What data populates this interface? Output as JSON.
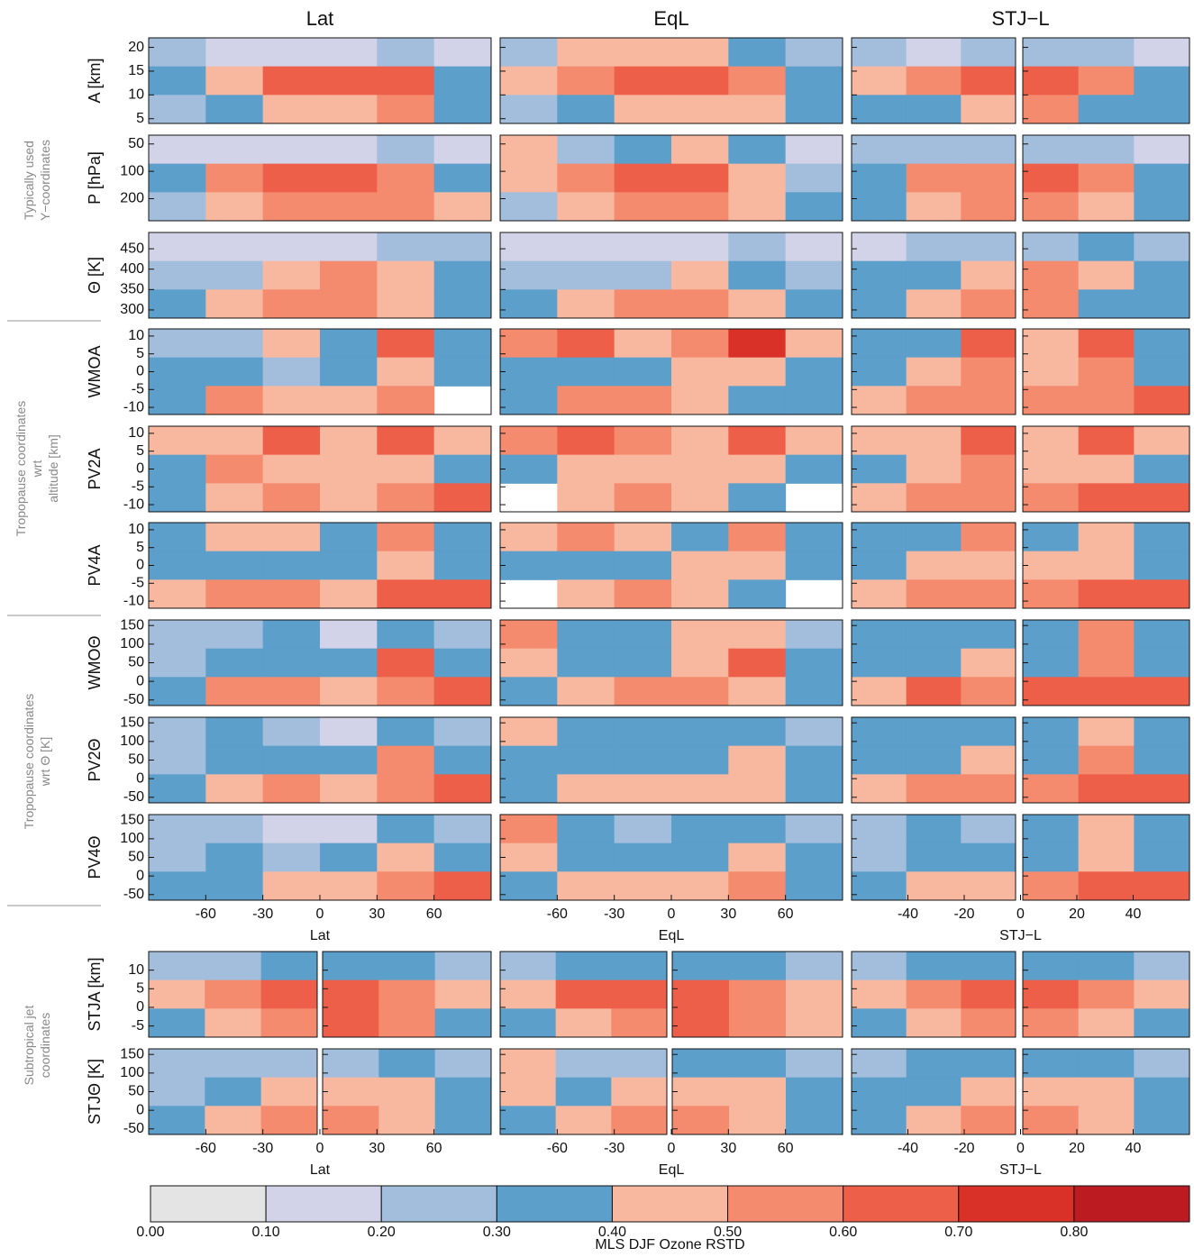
{
  "chart_data": {
    "type": "heatmap",
    "colorbar": {
      "title": "MLS DJF Ozone RSTD",
      "clim": [
        0,
        0.9
      ],
      "colors": [
        "#e4e4e4",
        "#d2d2e8",
        "#a3bedc",
        "#5c9fcb",
        "#f8b8a0",
        "#f48a6e",
        "#ee5f4a",
        "#d93128",
        "#bb1b21"
      ],
      "ticks": [
        {
          "value": 0,
          "label": "0.00"
        },
        {
          "value": 0.1,
          "label": "0.10"
        },
        {
          "value": 0.2,
          "label": "0.20"
        },
        {
          "value": 0.3,
          "label": "0.30"
        },
        {
          "value": 0.4,
          "label": "0.40"
        },
        {
          "value": 0.5,
          "label": "0.50"
        },
        {
          "value": 0.6,
          "label": "0.60"
        },
        {
          "value": 0.7,
          "label": "0.70"
        },
        {
          "value": 0.8,
          "label": "0.80"
        }
      ]
    },
    "groups": [
      "Typically used Y−coordinates",
      "Tropopause coordinates wrt  altitude [km]",
      "Tropopause coordinates wrt Θ [K]",
      "Subtropical jet coordinates"
    ],
    "columns": [
      {
        "title": "Lat",
        "xlabel": "Lat",
        "xlim": [
          -90,
          90
        ],
        "xticks": [
          -60,
          -30,
          0,
          30,
          60
        ]
      },
      {
        "title": "EqL",
        "xlabel": "EqL",
        "xlim": [
          -90,
          90
        ],
        "xticks": [
          -60,
          -30,
          0,
          30,
          60
        ]
      },
      {
        "title": "STJ−L",
        "xlabel": "STJ−L",
        "xlim": [
          -60,
          60
        ],
        "xticks": [
          -40,
          -20,
          0,
          20,
          40
        ]
      }
    ],
    "rows": [
      {
        "ylabel": "A [km]",
        "ylim": [
          4,
          22
        ],
        "yticks": [
          5,
          10,
          15,
          20
        ],
        "panels": [
          [
            [
              0.2,
              0.15,
              0.15,
              0.15,
              0.25,
              0.15
            ],
            [
              0.35,
              0.45,
              0.6,
              0.65,
              0.65,
              0.3
            ],
            [
              0.25,
              0.3,
              0.45,
              0.45,
              0.5,
              0.35
            ]
          ],
          [
            [
              0.25,
              0.45,
              0.45,
              0.45,
              0.3,
              0.2
            ],
            [
              0.45,
              0.55,
              0.65,
              0.65,
              0.55,
              0.3
            ],
            [
              0.25,
              0.35,
              0.45,
              0.45,
              0.45,
              0.35
            ]
          ],
          [
            [
              0.2,
              0.15,
              0.25,
              0.25,
              0.2,
              0.15
            ],
            [
              0.45,
              0.5,
              0.6,
              0.65,
              0.5,
              0.3
            ],
            [
              0.3,
              0.35,
              0.45,
              0.55,
              0.35,
              0.3
            ]
          ]
        ]
      },
      {
        "ylabel": "P [hPa]",
        "ylim": [
          350,
          40
        ],
        "log": true,
        "yticks": [
          50,
          100,
          200
        ],
        "panels": [
          [
            [
              0.15,
              0.15,
              0.15,
              0.15,
              0.2,
              0.15
            ],
            [
              0.35,
              0.55,
              0.6,
              0.6,
              0.55,
              0.3
            ],
            [
              0.25,
              0.45,
              0.5,
              0.5,
              0.5,
              0.4
            ]
          ],
          [
            [
              0.45,
              0.25,
              0.35,
              0.45,
              0.3,
              0.15
            ],
            [
              0.45,
              0.55,
              0.65,
              0.65,
              0.45,
              0.25
            ],
            [
              0.25,
              0.45,
              0.5,
              0.55,
              0.45,
              0.35
            ]
          ],
          [
            [
              0.2,
              0.25,
              0.25,
              0.25,
              0.2,
              0.15
            ],
            [
              0.35,
              0.5,
              0.55,
              0.65,
              0.5,
              0.3
            ],
            [
              0.3,
              0.45,
              0.55,
              0.55,
              0.45,
              0.3
            ]
          ]
        ]
      },
      {
        "ylabel": "Θ [K]",
        "ylim": [
          280,
          490
        ],
        "yticks": [
          300,
          350,
          400,
          450
        ],
        "panels": [
          [
            [
              0.15,
              0.15,
              0.15,
              0.15,
              0.25,
              0.2
            ],
            [
              0.25,
              0.25,
              0.45,
              0.5,
              0.45,
              0.3
            ],
            [
              0.35,
              0.45,
              0.55,
              0.55,
              0.45,
              0.3
            ]
          ],
          [
            [
              0.15,
              0.15,
              0.15,
              0.15,
              0.25,
              0.15
            ],
            [
              0.25,
              0.25,
              0.25,
              0.45,
              0.3,
              0.25
            ],
            [
              0.35,
              0.45,
              0.55,
              0.55,
              0.45,
              0.3
            ]
          ],
          [
            [
              0.15,
              0.2,
              0.25,
              0.25,
              0.3,
              0.2
            ],
            [
              0.3,
              0.35,
              0.45,
              0.55,
              0.45,
              0.3
            ],
            [
              0.3,
              0.45,
              0.55,
              0.55,
              0.35,
              0.3
            ]
          ]
        ]
      },
      {
        "ylabel": "WMOA",
        "ylim": [
          -12,
          12
        ],
        "yticks": [
          10,
          5,
          0,
          -5,
          -10
        ],
        "panels": [
          [
            [
              0.25,
              0.25,
              0.45,
              0.3,
              0.65,
              0.3
            ],
            [
              0.35,
              0.35,
              0.25,
              0.35,
              0.45,
              0.3
            ],
            [
              0.3,
              0.5,
              0.45,
              0.45,
              0.55,
              null
            ]
          ],
          [
            [
              0.55,
              0.65,
              0.45,
              0.55,
              0.75,
              0.45
            ],
            [
              0.3,
              0.35,
              0.35,
              0.45,
              0.45,
              0.35
            ],
            [
              0.3,
              0.5,
              0.55,
              0.45,
              0.35,
              0.3
            ]
          ],
          [
            [
              0.3,
              0.35,
              0.7,
              0.45,
              0.65,
              0.3
            ],
            [
              0.35,
              0.45,
              0.55,
              0.45,
              0.55,
              0.35
            ],
            [
              0.45,
              0.55,
              0.55,
              0.55,
              0.55,
              0.6
            ]
          ]
        ]
      },
      {
        "ylabel": "PV2A",
        "ylim": [
          -12,
          12
        ],
        "yticks": [
          10,
          5,
          0,
          -5,
          -10
        ],
        "panels": [
          [
            [
              0.45,
              0.45,
              0.65,
              0.45,
              0.7,
              0.45
            ],
            [
              0.35,
              0.5,
              0.45,
              0.45,
              0.45,
              0.35
            ],
            [
              0.35,
              0.45,
              0.5,
              0.45,
              0.55,
              0.65
            ]
          ],
          [
            [
              0.5,
              0.7,
              0.55,
              0.45,
              0.7,
              0.45
            ],
            [
              0.35,
              0.45,
              0.45,
              0.45,
              0.45,
              0.35
            ],
            [
              null,
              0.45,
              0.55,
              0.45,
              0.35,
              null
            ]
          ],
          [
            [
              0.4,
              0.45,
              0.7,
              0.45,
              0.65,
              0.45
            ],
            [
              0.35,
              0.45,
              0.55,
              0.45,
              0.45,
              0.35
            ],
            [
              0.45,
              0.55,
              0.55,
              0.55,
              0.65,
              0.65
            ]
          ]
        ]
      },
      {
        "ylabel": "PV4A",
        "ylim": [
          -12,
          12
        ],
        "yticks": [
          10,
          5,
          0,
          -5,
          -10
        ],
        "panels": [
          [
            [
              0.3,
              0.45,
              0.45,
              0.35,
              0.55,
              0.35
            ],
            [
              0.3,
              0.35,
              0.3,
              0.35,
              0.45,
              0.35
            ],
            [
              0.45,
              0.55,
              0.5,
              0.45,
              0.6,
              0.65
            ]
          ],
          [
            [
              0.45,
              0.55,
              0.45,
              0.35,
              0.55,
              0.3
            ],
            [
              0.3,
              0.35,
              0.35,
              0.45,
              0.45,
              0.35
            ],
            [
              null,
              0.45,
              0.5,
              0.45,
              0.35,
              null
            ]
          ],
          [
            [
              0.3,
              0.35,
              0.55,
              0.35,
              0.45,
              0.35
            ],
            [
              0.35,
              0.45,
              0.45,
              0.45,
              0.45,
              0.35
            ],
            [
              0.45,
              0.55,
              0.55,
              0.55,
              0.6,
              0.65
            ]
          ]
        ]
      },
      {
        "ylabel": "WMOΘ",
        "ylim": [
          -65,
          165
        ],
        "yticks": [
          150,
          100,
          50,
          0,
          -50
        ],
        "panels": [
          [
            [
              0.2,
              0.25,
              0.35,
              0.15,
              0.35,
              0.2
            ],
            [
              0.25,
              0.35,
              0.35,
              0.35,
              0.65,
              0.3
            ],
            [
              0.35,
              0.5,
              0.5,
              0.45,
              0.55,
              0.6
            ]
          ],
          [
            [
              0.5,
              0.35,
              0.3,
              0.45,
              0.4,
              0.2
            ],
            [
              0.45,
              0.35,
              0.3,
              0.45,
              0.65,
              0.3
            ],
            [
              0.35,
              0.45,
              0.5,
              0.5,
              0.45,
              0.35
            ]
          ],
          [
            [
              0.3,
              0.3,
              0.35,
              0.3,
              0.55,
              0.3
            ],
            [
              0.3,
              0.35,
              0.45,
              0.35,
              0.55,
              0.3
            ],
            [
              0.45,
              0.65,
              0.55,
              0.6,
              0.65,
              0.65
            ]
          ]
        ]
      },
      {
        "ylabel": "PV2Θ",
        "ylim": [
          -65,
          165
        ],
        "yticks": [
          150,
          100,
          50,
          0,
          -50
        ],
        "panels": [
          [
            [
              0.2,
              0.35,
              0.25,
              0.15,
              0.35,
              0.2
            ],
            [
              0.25,
              0.35,
              0.35,
              0.35,
              0.55,
              0.3
            ],
            [
              0.35,
              0.45,
              0.5,
              0.45,
              0.5,
              0.6
            ]
          ],
          [
            [
              0.45,
              0.3,
              0.35,
              0.3,
              0.35,
              0.2
            ],
            [
              0.3,
              0.3,
              0.35,
              0.35,
              0.45,
              0.3
            ],
            [
              0.35,
              0.45,
              0.45,
              0.45,
              0.45,
              0.35
            ]
          ],
          [
            [
              0.3,
              0.35,
              0.35,
              0.3,
              0.45,
              0.3
            ],
            [
              0.3,
              0.35,
              0.45,
              0.35,
              0.5,
              0.35
            ],
            [
              0.45,
              0.55,
              0.55,
              0.5,
              0.6,
              0.65
            ]
          ]
        ]
      },
      {
        "ylabel": "PV4Θ",
        "ylim": [
          -65,
          165
        ],
        "yticks": [
          150,
          100,
          50,
          0,
          -50
        ],
        "panels": [
          [
            [
              0.2,
              0.25,
              0.15,
              0.15,
              0.3,
              0.2
            ],
            [
              0.25,
              0.3,
              0.25,
              0.3,
              0.45,
              0.3
            ],
            [
              0.35,
              0.35,
              0.45,
              0.45,
              0.55,
              0.65
            ]
          ],
          [
            [
              0.5,
              0.3,
              0.25,
              0.3,
              0.3,
              0.2
            ],
            [
              0.45,
              0.3,
              0.3,
              0.35,
              0.45,
              0.3
            ],
            [
              0.35,
              0.45,
              0.45,
              0.45,
              0.5,
              0.35
            ]
          ],
          [
            [
              0.2,
              0.3,
              0.25,
              0.3,
              0.45,
              0.3
            ],
            [
              0.25,
              0.3,
              0.35,
              0.35,
              0.45,
              0.3
            ],
            [
              0.35,
              0.45,
              0.45,
              0.5,
              0.6,
              0.65
            ]
          ]
        ]
      },
      {
        "ylabel": "STJA [km]",
        "ylim": [
          -8,
          15
        ],
        "yticks": [
          -5,
          0,
          5,
          10
        ],
        "panels": [
          [
            [
              0.2,
              0.25,
              0.35,
              0.35,
              0.3,
              0.2
            ],
            [
              0.45,
              0.55,
              0.65,
              0.7,
              0.55,
              0.45
            ],
            [
              0.3,
              0.45,
              0.5,
              0.6,
              0.5,
              0.35
            ]
          ],
          [
            [
              0.2,
              0.3,
              0.35,
              0.35,
              0.3,
              0.2
            ],
            [
              0.45,
              0.6,
              0.7,
              0.7,
              0.55,
              0.45
            ],
            [
              0.3,
              0.45,
              0.5,
              0.6,
              0.5,
              0.4
            ]
          ],
          [
            [
              0.25,
              0.3,
              0.35,
              0.35,
              0.3,
              0.2
            ],
            [
              0.45,
              0.55,
              0.6,
              0.65,
              0.55,
              0.45
            ],
            [
              0.3,
              0.45,
              0.5,
              0.55,
              0.45,
              0.35
            ]
          ]
        ]
      },
      {
        "ylabel": "STJΘ [K]",
        "ylim": [
          -65,
          165
        ],
        "yticks": [
          150,
          100,
          50,
          0,
          -50
        ],
        "panels": [
          [
            [
              0.2,
              0.25,
              0.2,
              0.25,
              0.3,
              0.2
            ],
            [
              0.25,
              0.35,
              0.45,
              0.45,
              0.45,
              0.3
            ],
            [
              0.3,
              0.45,
              0.5,
              0.55,
              0.45,
              0.35
            ]
          ],
          [
            [
              0.45,
              0.2,
              0.25,
              0.3,
              0.3,
              0.2
            ],
            [
              0.4,
              0.3,
              0.45,
              0.45,
              0.45,
              0.3
            ],
            [
              0.3,
              0.45,
              0.5,
              0.55,
              0.45,
              0.35
            ]
          ],
          [
            [
              0.25,
              0.35,
              0.3,
              0.3,
              0.35,
              0.2
            ],
            [
              0.35,
              0.35,
              0.45,
              0.45,
              0.45,
              0.3
            ],
            [
              0.3,
              0.45,
              0.5,
              0.55,
              0.45,
              0.35
            ]
          ]
        ]
      }
    ]
  }
}
